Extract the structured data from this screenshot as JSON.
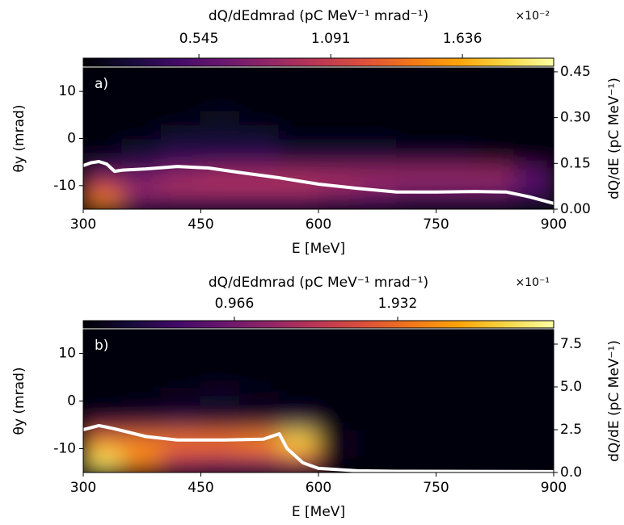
{
  "chart_data": [
    {
      "type": "heatmap",
      "panel_label": "a)",
      "xlabel": "E [MeV]",
      "ylabel": "θy (mrad)",
      "y2label": "dQ/dE (pC MeV⁻¹)",
      "xlim": [
        300,
        900
      ],
      "xticks": [
        300,
        450,
        600,
        750,
        900
      ],
      "ylim": [
        -15,
        15
      ],
      "yticks": [
        -10,
        0,
        10
      ],
      "y2lim": [
        0,
        0.463
      ],
      "y2ticks": [
        {
          "value": 0,
          "label": "0.00"
        },
        0.15,
        {
          "value": 0.3,
          "label": "0.30"
        },
        0.45
      ],
      "colormap": "inferno",
      "colorbar": {
        "label": "dQ/dEdmrad (pC MeV⁻¹ mrad⁻¹)",
        "offset_text": "×10⁻²",
        "lim": [
          0.066,
          2.014
        ],
        "ticks": [
          0.545,
          1.091,
          1.636
        ]
      },
      "x": [
        325,
        375,
        425,
        475,
        525,
        575,
        625,
        675,
        725,
        775,
        825,
        875
      ],
      "y": [
        -13.5,
        -10.5,
        -7.5,
        -4.5,
        -1.5,
        1.5,
        4.5,
        7.5,
        10.5,
        13.5
      ],
      "z": [
        [
          1.5,
          0.6,
          0.5,
          0.5,
          0.5,
          0.5,
          0.4,
          0.4,
          0.3,
          0.3,
          0.3,
          0.2
        ],
        [
          1.2,
          0.9,
          1.0,
          1.0,
          1.0,
          1.0,
          0.9,
          0.8,
          0.7,
          0.7,
          0.7,
          0.5
        ],
        [
          0.5,
          0.6,
          0.8,
          0.9,
          0.9,
          0.9,
          0.9,
          0.9,
          0.9,
          0.9,
          0.9,
          0.6
        ],
        [
          0.2,
          0.3,
          0.4,
          0.4,
          0.4,
          0.3,
          0.3,
          0.3,
          0.3,
          0.3,
          0.2,
          0.1
        ],
        [
          0.1,
          0.2,
          0.3,
          0.3,
          0.3,
          0.2,
          0.2,
          0.2,
          0.1,
          0.1,
          0.1,
          0.1
        ],
        [
          0.1,
          0.1,
          0.2,
          0.2,
          0.2,
          0.1,
          0.1,
          0.1,
          0.1,
          0.1,
          0.1,
          0.1
        ],
        [
          0.1,
          0.1,
          0.1,
          0.2,
          0.1,
          0.1,
          0.1,
          0.1,
          0.1,
          0.1,
          0.1,
          0.1
        ],
        [
          0.1,
          0.1,
          0.1,
          0.1,
          0.1,
          0.1,
          0.1,
          0.1,
          0.1,
          0.1,
          0.1,
          0.1
        ],
        [
          0.1,
          0.1,
          0.1,
          0.1,
          0.1,
          0.1,
          0.1,
          0.1,
          0.1,
          0.1,
          0.1,
          0.1
        ],
        [
          0.1,
          0.1,
          0.1,
          0.1,
          0.1,
          0.1,
          0.1,
          0.1,
          0.1,
          0.1,
          0.1,
          0.1
        ]
      ],
      "series": [
        {
          "color": "#ffffff",
          "axis": "y2",
          "x": [
            300,
            310,
            320,
            330,
            340,
            350,
            380,
            420,
            460,
            500,
            550,
            600,
            650,
            700,
            750,
            800,
            840,
            870,
            900
          ],
          "values": [
            0.143,
            0.152,
            0.156,
            0.148,
            0.124,
            0.128,
            0.132,
            0.14,
            0.135,
            0.12,
            0.103,
            0.082,
            0.068,
            0.056,
            0.056,
            0.058,
            0.056,
            0.04,
            0.019
          ]
        }
      ]
    },
    {
      "type": "heatmap",
      "panel_label": "b)",
      "xlabel": "E [MeV]",
      "ylabel": "θy (mrad)",
      "y2label": "dQ/dE (pC MeV⁻¹)",
      "xlim": [
        300,
        900
      ],
      "xticks": [
        300,
        450,
        600,
        750,
        900
      ],
      "ylim": [
        -15,
        15
      ],
      "yticks": [
        -10,
        0,
        10
      ],
      "y2lim": [
        0,
        8.35
      ],
      "y2ticks": [
        {
          "value": 0,
          "label": "0.0"
        },
        2.5,
        {
          "value": 5,
          "label": "5.0"
        },
        7.5
      ],
      "colormap": "inferno",
      "colorbar": {
        "label": "dQ/dEdmrad (pC MeV⁻¹ mrad⁻¹)",
        "offset_text": "×10⁻¹",
        "lim": [
          0.072,
          2.855
        ],
        "ticks": [
          0.966,
          1.932
        ]
      },
      "x": [
        325,
        375,
        425,
        475,
        525,
        575,
        625,
        675,
        725,
        775,
        825,
        875
      ],
      "y": [
        -13.5,
        -10.5,
        -7.5,
        -4.5,
        -1.5,
        1.5,
        4.5,
        7.5,
        10.5,
        13.5
      ],
      "z": [
        [
          2.7,
          2.0,
          1.2,
          1.0,
          1.0,
          1.2,
          0.1,
          0.1,
          0.1,
          0.1,
          0.1,
          0.1
        ],
        [
          2.5,
          2.2,
          1.8,
          1.8,
          1.9,
          2.3,
          0.2,
          0.1,
          0.1,
          0.1,
          0.1,
          0.1
        ],
        [
          1.8,
          1.9,
          2.0,
          2.0,
          2.1,
          2.6,
          0.2,
          0.1,
          0.1,
          0.1,
          0.1,
          0.1
        ],
        [
          0.4,
          0.4,
          0.5,
          0.4,
          0.4,
          0.5,
          0.1,
          0.1,
          0.1,
          0.1,
          0.1,
          0.1
        ],
        [
          0.1,
          0.2,
          0.2,
          0.2,
          0.1,
          0.1,
          0.1,
          0.1,
          0.1,
          0.1,
          0.1,
          0.1
        ],
        [
          0.1,
          0.1,
          0.2,
          0.3,
          0.2,
          0.1,
          0.1,
          0.1,
          0.1,
          0.1,
          0.1,
          0.1
        ],
        [
          0.1,
          0.1,
          0.1,
          0.1,
          0.1,
          0.1,
          0.1,
          0.1,
          0.1,
          0.1,
          0.1,
          0.1
        ],
        [
          0.1,
          0.1,
          0.1,
          0.1,
          0.1,
          0.1,
          0.1,
          0.1,
          0.1,
          0.1,
          0.1,
          0.1
        ],
        [
          0.1,
          0.1,
          0.1,
          0.1,
          0.1,
          0.1,
          0.1,
          0.1,
          0.1,
          0.1,
          0.1,
          0.1
        ],
        [
          0.1,
          0.1,
          0.1,
          0.1,
          0.1,
          0.1,
          0.1,
          0.1,
          0.1,
          0.1,
          0.1,
          0.1
        ]
      ],
      "series": [
        {
          "color": "#ffffff",
          "axis": "y2",
          "x": [
            300,
            320,
            340,
            380,
            420,
            480,
            530,
            550,
            560,
            580,
            600,
            650,
            700,
            900
          ],
          "values": [
            2.5,
            2.74,
            2.55,
            2.1,
            1.9,
            1.9,
            1.95,
            2.26,
            1.4,
            0.57,
            0.24,
            0.1,
            0.07,
            0.05
          ]
        }
      ]
    }
  ]
}
